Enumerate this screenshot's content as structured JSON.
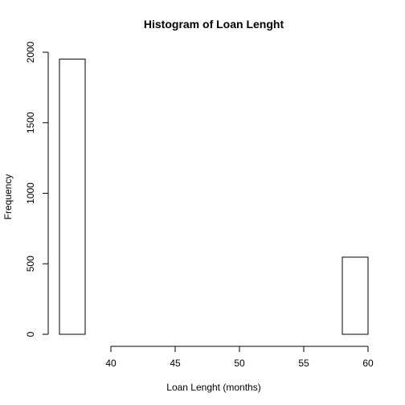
{
  "chart_data": {
    "type": "bar",
    "title": "Histogram of Loan Lenght",
    "xlabel": "Loan Lenght (months)",
    "ylabel": "Frequency",
    "xlim": [
      36,
      60
    ],
    "ylim": [
      0,
      2000
    ],
    "x_ticks": [
      40,
      45,
      50,
      55,
      60
    ],
    "y_ticks": [
      0,
      500,
      1000,
      1500,
      2000
    ],
    "bins": [
      {
        "start": 36,
        "end": 38,
        "count": 1951
      },
      {
        "start": 38,
        "end": 40,
        "count": 0
      },
      {
        "start": 40,
        "end": 42,
        "count": 0
      },
      {
        "start": 42,
        "end": 44,
        "count": 0
      },
      {
        "start": 44,
        "end": 46,
        "count": 0
      },
      {
        "start": 46,
        "end": 48,
        "count": 0
      },
      {
        "start": 48,
        "end": 50,
        "count": 0
      },
      {
        "start": 50,
        "end": 52,
        "count": 0
      },
      {
        "start": 52,
        "end": 54,
        "count": 0
      },
      {
        "start": 54,
        "end": 56,
        "count": 0
      },
      {
        "start": 56,
        "end": 58,
        "count": 0
      },
      {
        "start": 58,
        "end": 60,
        "count": 547
      }
    ],
    "grid": false,
    "legend": "none"
  }
}
